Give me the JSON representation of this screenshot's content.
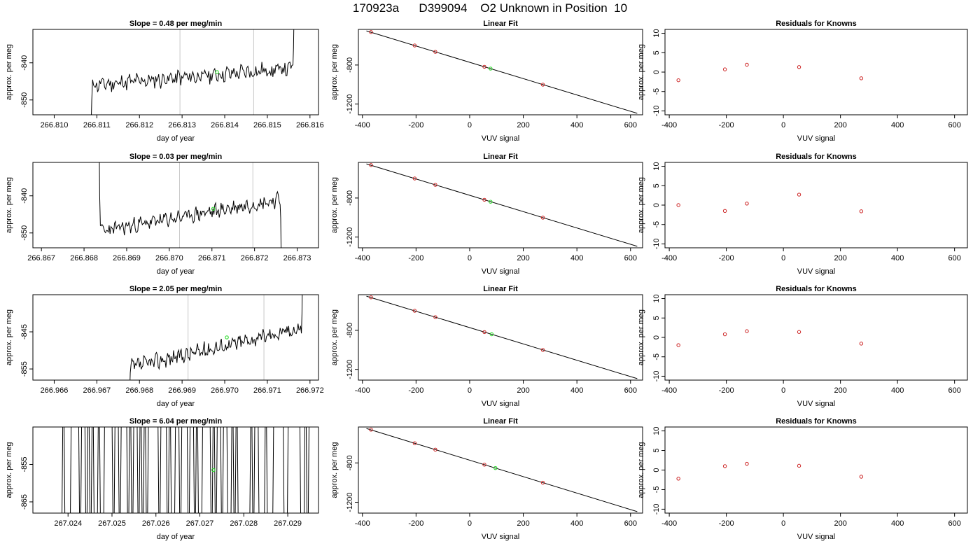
{
  "title": "170923a      D399094    O2 Unknown in Position  10",
  "colors": {
    "trace": "#000000",
    "green_point": "#33dd33",
    "red_point": "#cc2222",
    "vline": "#c8c8c8",
    "fit_line": "#000000"
  },
  "chart_data": [
    {
      "type": "line",
      "row": 1,
      "col": 1,
      "title": "Slope =  0.48  per meg/min",
      "xlabel": "day of year",
      "ylabel": "approx. per meg",
      "xlim": [
        266.8095,
        266.8162
      ],
      "ylim": [
        -854,
        -831
      ],
      "xticks": [
        266.81,
        266.811,
        266.812,
        266.813,
        266.814,
        266.815,
        266.816
      ],
      "xtick_labels": [
        "266.810",
        "266.811",
        "266.812",
        "266.813",
        "266.814",
        "266.815",
        "266.816"
      ],
      "yticks": [
        -840,
        -850
      ],
      "ytick_labels": [
        "-840",
        "-850"
      ],
      "vlines": [
        266.81295,
        266.81468
      ],
      "trace": {
        "x_start": 266.8109,
        "x_end": 266.8156,
        "base_start": -846,
        "base_end": -841.5,
        "amp": 1.8,
        "seed": 11,
        "head": [
          -858,
          -850
        ],
        "tail": [
          -836,
          -825
        ]
      },
      "highlight": {
        "x": 266.81382,
        "y": -842.5
      }
    },
    {
      "type": "scatter",
      "row": 1,
      "col": 2,
      "title": "Linear Fit",
      "xlabel": "VUV signal",
      "ylabel": "approx. per meg",
      "xlim": [
        -415,
        645
      ],
      "ylim": [
        -1310,
        -435
      ],
      "xticks": [
        -400,
        -200,
        0,
        200,
        400,
        600
      ],
      "xtick_labels": [
        "-400",
        "-200",
        "0",
        "200",
        "400",
        "600"
      ],
      "yticks": [
        -800,
        -1200
      ],
      "ytick_labels": [
        "-800",
        "-1200"
      ],
      "fit_line": {
        "x": [
          -385,
          625
        ],
        "y": [
          -450,
          -1295
        ]
      },
      "knowns": [
        {
          "x": -368,
          "y": -462
        },
        {
          "x": -205,
          "y": -600
        },
        {
          "x": -128,
          "y": -665
        },
        {
          "x": 55,
          "y": -818
        },
        {
          "x": 273,
          "y": -1001
        }
      ],
      "unknown": {
        "x": 78,
        "y": -837
      }
    },
    {
      "type": "scatter",
      "row": 1,
      "col": 3,
      "title": "Residuals for Knowns",
      "xlabel": "VUV signal",
      "ylabel": "approx. per meg",
      "xlim": [
        -415,
        645
      ],
      "ylim": [
        -11,
        11
      ],
      "xticks": [
        -400,
        -200,
        0,
        200,
        400,
        600
      ],
      "xtick_labels": [
        "-400",
        "-200",
        "0",
        "200",
        "400",
        "600"
      ],
      "yticks": [
        10,
        5,
        0,
        -5,
        -10
      ],
      "ytick_labels": [
        "10",
        "5",
        "0",
        "-5",
        "-10"
      ],
      "points": [
        {
          "x": -368,
          "y": -2.1
        },
        {
          "x": -205,
          "y": 0.7
        },
        {
          "x": -128,
          "y": 1.9
        },
        {
          "x": 55,
          "y": 1.3
        },
        {
          "x": 273,
          "y": -1.6
        }
      ]
    },
    {
      "type": "line",
      "row": 2,
      "col": 1,
      "title": "Slope =  0.03  per meg/min",
      "xlabel": "day of year",
      "ylabel": "approx. per meg",
      "xlim": [
        266.8668,
        266.8735
      ],
      "ylim": [
        -854,
        -831
      ],
      "xticks": [
        266.867,
        266.868,
        266.869,
        266.87,
        266.871,
        266.872,
        266.873
      ],
      "xtick_labels": [
        "266.867",
        "266.868",
        "266.869",
        "266.870",
        "266.871",
        "266.872",
        "266.873"
      ],
      "yticks": [
        -840,
        -850
      ],
      "ytick_labels": [
        "-840",
        "-850"
      ],
      "vlines": [
        266.87024,
        266.87196
      ],
      "trace": {
        "x_start": 266.8684,
        "x_end": 266.8726,
        "base_start": -849.5,
        "base_end": -841,
        "amp": 1.6,
        "seed": 23,
        "head": [
          -820,
          -840,
          -848
        ],
        "tail": [
          -846,
          -856
        ]
      },
      "highlight": {
        "x": 266.87103,
        "y": -843.5
      }
    },
    {
      "type": "scatter",
      "row": 2,
      "col": 2,
      "title": "Linear Fit",
      "xlabel": "VUV signal",
      "ylabel": "approx. per meg",
      "xlim": [
        -415,
        645
      ],
      "ylim": [
        -1310,
        -435
      ],
      "xticks": [
        -400,
        -200,
        0,
        200,
        400,
        600
      ],
      "xtick_labels": [
        "-400",
        "-200",
        "0",
        "200",
        "400",
        "600"
      ],
      "yticks": [
        -800,
        -1200
      ],
      "ytick_labels": [
        "-800",
        "-1200"
      ],
      "fit_line": {
        "x": [
          -385,
          625
        ],
        "y": [
          -450,
          -1295
        ]
      },
      "knowns": [
        {
          "x": -368,
          "y": -462
        },
        {
          "x": -205,
          "y": -600
        },
        {
          "x": -128,
          "y": -665
        },
        {
          "x": 55,
          "y": -818
        },
        {
          "x": 273,
          "y": -1001
        }
      ],
      "unknown": {
        "x": 78,
        "y": -838
      }
    },
    {
      "type": "scatter",
      "row": 2,
      "col": 3,
      "title": "Residuals for Knowns",
      "xlabel": "VUV signal",
      "ylabel": "approx. per meg",
      "xlim": [
        -415,
        645
      ],
      "ylim": [
        -11,
        11
      ],
      "xticks": [
        -400,
        -200,
        0,
        200,
        400,
        600
      ],
      "xtick_labels": [
        "-400",
        "-200",
        "0",
        "200",
        "400",
        "600"
      ],
      "yticks": [
        10,
        5,
        0,
        -5,
        -10
      ],
      "ytick_labels": [
        "10",
        "5",
        "0",
        "-5",
        "-10"
      ],
      "points": [
        {
          "x": -368,
          "y": 0.0
        },
        {
          "x": -205,
          "y": -1.5
        },
        {
          "x": -128,
          "y": 0.4
        },
        {
          "x": 55,
          "y": 2.7
        },
        {
          "x": 273,
          "y": -1.6
        }
      ]
    },
    {
      "type": "line",
      "row": 3,
      "col": 1,
      "title": "Slope =  2.05  per meg/min",
      "xlabel": "day of year",
      "ylabel": "approx. per meg",
      "xlim": [
        266.9655,
        266.9722
      ],
      "ylim": [
        -858,
        -835
      ],
      "xticks": [
        266.966,
        266.967,
        266.968,
        266.969,
        266.97,
        266.971,
        266.972
      ],
      "xtick_labels": [
        "266.966",
        "266.967",
        "266.968",
        "266.969",
        "266.970",
        "266.971",
        "266.972"
      ],
      "yticks": [
        -845,
        -855
      ],
      "ytick_labels": [
        "-845",
        "-855"
      ],
      "vlines": [
        266.96914,
        266.97092
      ],
      "trace": {
        "x_start": 266.9678,
        "x_end": 266.9718,
        "base_start": -854.5,
        "base_end": -844,
        "amp": 1.7,
        "seed": 37,
        "head": [
          -862,
          -856
        ],
        "tail": [
          -840,
          -830
        ]
      },
      "highlight": {
        "x": 266.97005,
        "y": -846.5
      }
    },
    {
      "type": "scatter",
      "row": 3,
      "col": 2,
      "title": "Linear Fit",
      "xlabel": "VUV signal",
      "ylabel": "approx. per meg",
      "xlim": [
        -415,
        645
      ],
      "ylim": [
        -1310,
        -435
      ],
      "xticks": [
        -400,
        -200,
        0,
        200,
        400,
        600
      ],
      "xtick_labels": [
        "-400",
        "-200",
        "0",
        "200",
        "400",
        "600"
      ],
      "yticks": [
        -800,
        -1200
      ],
      "ytick_labels": [
        "-800",
        "-1200"
      ],
      "fit_line": {
        "x": [
          -385,
          625
        ],
        "y": [
          -450,
          -1295
        ]
      },
      "knowns": [
        {
          "x": -368,
          "y": -462
        },
        {
          "x": -205,
          "y": -600
        },
        {
          "x": -128,
          "y": -665
        },
        {
          "x": 55,
          "y": -818
        },
        {
          "x": 273,
          "y": -1001
        }
      ],
      "unknown": {
        "x": 82,
        "y": -840
      }
    },
    {
      "type": "scatter",
      "row": 3,
      "col": 3,
      "title": "Residuals for Knowns",
      "xlabel": "VUV signal",
      "ylabel": "approx. per meg",
      "xlim": [
        -415,
        645
      ],
      "ylim": [
        -11,
        11
      ],
      "xticks": [
        -400,
        -200,
        0,
        200,
        400,
        600
      ],
      "xtick_labels": [
        "-400",
        "-200",
        "0",
        "200",
        "400",
        "600"
      ],
      "yticks": [
        10,
        5,
        0,
        -5,
        -10
      ],
      "ytick_labels": [
        "10",
        "5",
        "0",
        "-5",
        "-10"
      ],
      "points": [
        {
          "x": -368,
          "y": -2.0
        },
        {
          "x": -205,
          "y": 0.8
        },
        {
          "x": -128,
          "y": 1.6
        },
        {
          "x": 55,
          "y": 1.4
        },
        {
          "x": 273,
          "y": -1.6
        }
      ]
    },
    {
      "type": "line",
      "row": 4,
      "col": 1,
      "title": "Slope =  6.04  per meg/min",
      "xlabel": "day of year",
      "ylabel": "approx. per meg",
      "xlim": [
        267.0232,
        267.0297
      ],
      "ylim": [
        -868,
        -845
      ],
      "xticks": [
        267.024,
        267.025,
        267.026,
        267.027,
        267.028,
        267.029
      ],
      "xtick_labels": [
        "267.024",
        "267.025",
        "267.026",
        "267.027",
        "267.028",
        "267.029"
      ],
      "yticks": [
        -855,
        -865
      ],
      "ytick_labels": [
        "-855",
        "-865"
      ],
      "vlines": [],
      "trace": {
        "x_start": 267.0238,
        "x_end": 267.0295,
        "noisy": true,
        "seed": 51
      },
      "highlight": {
        "x": 267.02731,
        "y": -856.5
      }
    },
    {
      "type": "scatter",
      "row": 4,
      "col": 2,
      "title": "Linear Fit",
      "xlabel": "VUV signal",
      "ylabel": "approx. per meg",
      "xlim": [
        -415,
        645
      ],
      "ylim": [
        -1310,
        -435
      ],
      "xticks": [
        -400,
        -200,
        0,
        200,
        400,
        600
      ],
      "xtick_labels": [
        "-400",
        "-200",
        "0",
        "200",
        "400",
        "600"
      ],
      "yticks": [
        -800,
        -1200
      ],
      "ytick_labels": [
        "-800",
        "-1200"
      ],
      "fit_line": {
        "x": [
          -385,
          625
        ],
        "y": [
          -450,
          -1295
        ]
      },
      "knowns": [
        {
          "x": -368,
          "y": -462
        },
        {
          "x": -205,
          "y": -600
        },
        {
          "x": -128,
          "y": -665
        },
        {
          "x": 55,
          "y": -818
        },
        {
          "x": 273,
          "y": -1001
        }
      ],
      "unknown": {
        "x": 96,
        "y": -852
      }
    },
    {
      "type": "scatter",
      "row": 4,
      "col": 3,
      "title": "Residuals for Knowns",
      "xlabel": "VUV signal",
      "ylabel": "approx. per meg",
      "xlim": [
        -415,
        645
      ],
      "ylim": [
        -11,
        11
      ],
      "xticks": [
        -400,
        -200,
        0,
        200,
        400,
        600
      ],
      "xtick_labels": [
        "-400",
        "-200",
        "0",
        "200",
        "400",
        "600"
      ],
      "yticks": [
        10,
        5,
        0,
        -5,
        -10
      ],
      "ytick_labels": [
        "10",
        "5",
        "0",
        "-5",
        "-10"
      ],
      "points": [
        {
          "x": -368,
          "y": -2.2
        },
        {
          "x": -205,
          "y": 1.0
        },
        {
          "x": -128,
          "y": 1.6
        },
        {
          "x": 55,
          "y": 1.1
        },
        {
          "x": 273,
          "y": -1.7
        }
      ]
    }
  ]
}
